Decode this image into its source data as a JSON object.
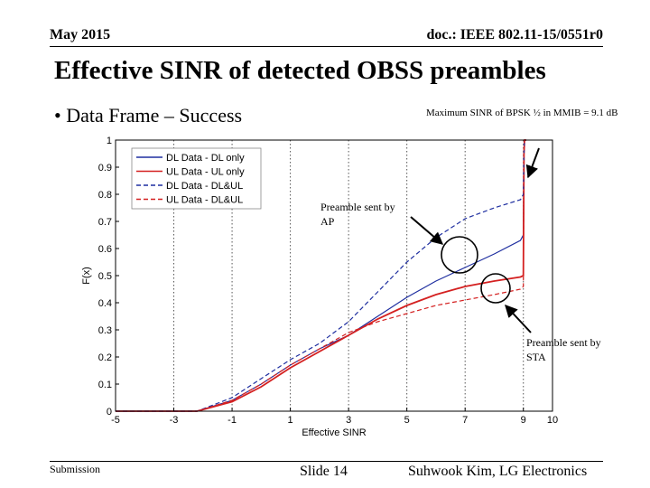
{
  "header": {
    "date": "May 2015",
    "doc": "doc.: IEEE 802.11-15/0551r0"
  },
  "title": "Effective SINR of detected OBSS preambles",
  "bullet": "• Data Frame – Success",
  "footer": {
    "submission": "Submission",
    "slide": "Slide 14",
    "author": "Suhwook Kim, LG Electronics"
  },
  "colors": {
    "blue": "#1f2fa0",
    "red": "#d42020"
  },
  "chart_data": {
    "type": "line",
    "xlabel": "Effective SINR",
    "ylabel": "F(x)",
    "xlim": [
      -5,
      10
    ],
    "ylim": [
      0,
      1
    ],
    "x_ticks": [
      "-5",
      "-3",
      "-1",
      "1",
      "3",
      "5",
      "7",
      "9",
      "10"
    ],
    "y_ticks": [
      "0",
      "0.1",
      "0.2",
      "0.3",
      "0.4",
      "0.5",
      "0.6",
      "0.7",
      "0.8",
      "0.9",
      "1"
    ],
    "legend_position": "top-left",
    "grid": "vertical dotted",
    "series": [
      {
        "name": "DL Data - DL only",
        "color": "#1f2fa0",
        "style": "solid",
        "x": [
          -5,
          -2.2,
          -1,
          0,
          1,
          2,
          3,
          4,
          5,
          6,
          7,
          8,
          8.9,
          9.0,
          9.02,
          9.04,
          9.1
        ],
        "y": [
          0,
          0,
          0.04,
          0.1,
          0.17,
          0.23,
          0.28,
          0.35,
          0.42,
          0.48,
          0.53,
          0.58,
          0.63,
          0.65,
          0.95,
          1,
          1
        ]
      },
      {
        "name": "UL Data - UL only",
        "color": "#d42020",
        "style": "solid",
        "x": [
          -5,
          -2.2,
          -1,
          0,
          1,
          2,
          3,
          4,
          5,
          6,
          7,
          8,
          8.9,
          9.0,
          9.02,
          9.04,
          9.1
        ],
        "y": [
          0,
          0,
          0.035,
          0.09,
          0.16,
          0.22,
          0.28,
          0.34,
          0.39,
          0.43,
          0.46,
          0.48,
          0.495,
          0.5,
          0.95,
          1,
          1
        ]
      },
      {
        "name": "DL Data - DL&UL",
        "color": "#1f2fa0",
        "style": "dashed",
        "x": [
          -5,
          -2.2,
          -1,
          0,
          1,
          2,
          3,
          4,
          5,
          6,
          7,
          8,
          8.9,
          9.0,
          9.02,
          9.04,
          9.1
        ],
        "y": [
          0,
          0,
          0.05,
          0.12,
          0.19,
          0.25,
          0.33,
          0.44,
          0.55,
          0.64,
          0.71,
          0.75,
          0.78,
          0.8,
          0.95,
          1,
          1
        ]
      },
      {
        "name": "UL Data - DL&UL",
        "color": "#d42020",
        "style": "dashed",
        "x": [
          -5,
          -2.2,
          -1,
          0,
          1,
          2,
          3,
          4,
          5,
          6,
          7,
          8,
          8.9,
          9.0,
          9.02,
          9.04,
          9.1
        ],
        "y": [
          0,
          0,
          0.04,
          0.1,
          0.17,
          0.23,
          0.29,
          0.33,
          0.36,
          0.39,
          0.41,
          0.43,
          0.45,
          0.46,
          0.95,
          1,
          1
        ]
      }
    ],
    "annotations": [
      {
        "text": "Maximum SINR of BPSK ½ in MMIB = 9.1 dB",
        "target_x": 9.05,
        "target_y": 0.95
      },
      {
        "text": "Preamble sent by AP",
        "lines": [
          "Preamble sent by",
          "AP"
        ],
        "target_x": 7.2,
        "target_y": 0.57
      },
      {
        "text": "Preamble sent by STA",
        "lines": [
          "Preamble sent by",
          "STA"
        ],
        "target_x": 8.2,
        "target_y": 0.46
      }
    ]
  }
}
